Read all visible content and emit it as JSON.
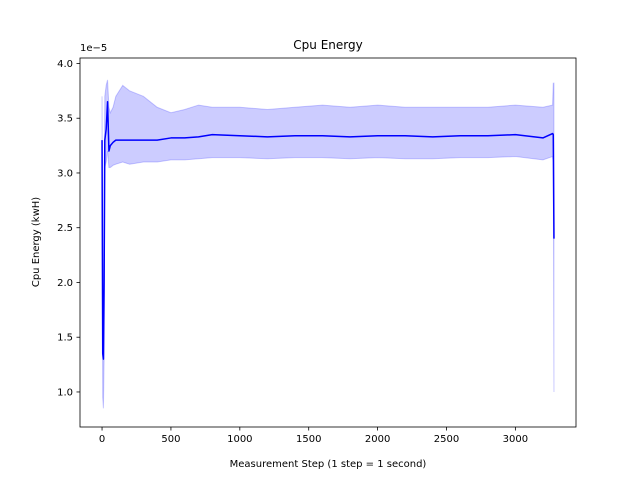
{
  "chart_data": {
    "type": "line",
    "title": "Cpu Energy",
    "xlabel": "Measurement Step (1 step = 1 second)",
    "ylabel": "Cpu Energy (kwH)",
    "offset_label": "1e−5",
    "xlim": [
      -160,
      3440
    ],
    "ylim": [
      0.68,
      4.05
    ],
    "x_ticks": [
      0,
      500,
      1000,
      1500,
      2000,
      2500,
      3000
    ],
    "y_ticks": [
      1.0,
      1.5,
      2.0,
      2.5,
      3.0,
      3.5,
      4.0
    ],
    "x_tick_labels": [
      "0",
      "500",
      "1000",
      "1500",
      "2000",
      "2500",
      "3000"
    ],
    "y_tick_labels": [
      "1.0",
      "1.5",
      "2.0",
      "2.5",
      "3.0",
      "3.5",
      "4.0"
    ],
    "grid": false,
    "legend": "none",
    "series": [
      {
        "color": "#0000ff",
        "band_color": "#0000ff",
        "band_opacity": 0.2,
        "x": [
          0,
          5,
          10,
          15,
          20,
          30,
          40,
          50,
          60,
          80,
          100,
          150,
          200,
          300,
          400,
          500,
          600,
          700,
          800,
          1000,
          1200,
          1400,
          1600,
          1800,
          2000,
          2200,
          2400,
          2600,
          2800,
          3000,
          3200,
          3270,
          3275,
          3280
        ],
        "y": [
          3.3,
          1.35,
          1.3,
          2.0,
          3.3,
          3.4,
          3.65,
          3.2,
          3.25,
          3.28,
          3.3,
          3.3,
          3.3,
          3.3,
          3.3,
          3.32,
          3.32,
          3.33,
          3.35,
          3.34,
          3.33,
          3.34,
          3.34,
          3.33,
          3.34,
          3.34,
          3.33,
          3.34,
          3.34,
          3.35,
          3.32,
          3.36,
          3.35,
          2.4
        ],
        "y_lower": [
          3.05,
          0.95,
          0.85,
          1.3,
          3.05,
          3.1,
          3.2,
          3.05,
          3.05,
          3.07,
          3.08,
          3.1,
          3.08,
          3.1,
          3.1,
          3.12,
          3.12,
          3.13,
          3.14,
          3.14,
          3.13,
          3.14,
          3.14,
          3.13,
          3.14,
          3.13,
          3.13,
          3.14,
          3.14,
          3.15,
          3.12,
          3.15,
          3.1,
          1.0
        ],
        "y_upper": [
          3.7,
          1.6,
          1.6,
          2.5,
          3.7,
          3.8,
          3.85,
          3.6,
          3.55,
          3.6,
          3.7,
          3.8,
          3.75,
          3.7,
          3.6,
          3.55,
          3.58,
          3.62,
          3.6,
          3.6,
          3.58,
          3.6,
          3.62,
          3.6,
          3.62,
          3.6,
          3.6,
          3.6,
          3.6,
          3.62,
          3.6,
          3.62,
          3.82,
          3.82
        ]
      }
    ]
  }
}
